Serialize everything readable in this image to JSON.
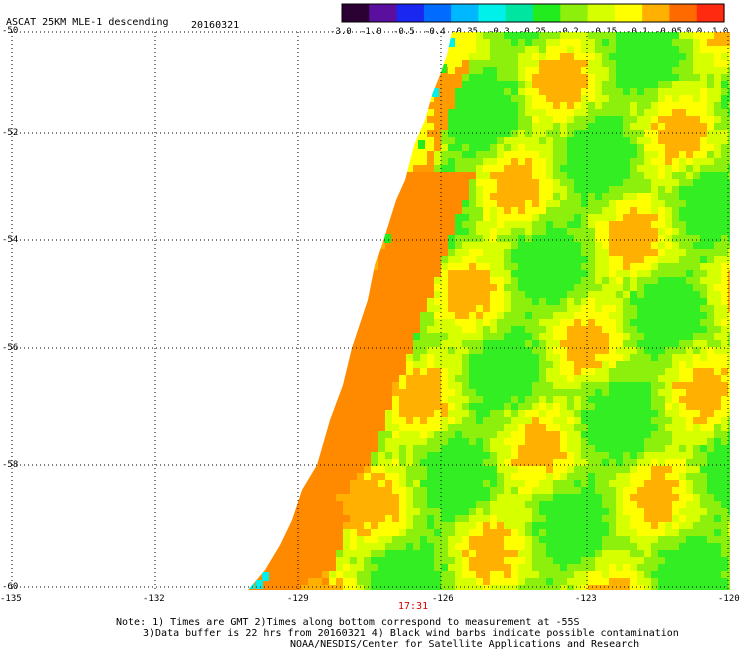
{
  "header": {
    "title": "ASCAT 25KM MLE-1 descending",
    "date": "20160321"
  },
  "colorbar": {
    "labels": [
      "-3.0",
      "-1.0",
      "-0.5",
      "-0.4",
      "-0.35",
      "-0.3",
      "-0.25",
      "-0.2",
      "-0.15",
      "-0.1",
      "-0.05",
      "0.0",
      "1.0"
    ],
    "colors": [
      "#2b0033",
      "#5a0f9e",
      "#1a27f0",
      "#006cff",
      "#00b8ff",
      "#00f0ea",
      "#00e6a0",
      "#22ec1e",
      "#8cf00c",
      "#d6ff00",
      "#ffff00",
      "#ffb000",
      "#ff6a00",
      "#ff2a10"
    ]
  },
  "axes": {
    "lat_labels": [
      "-50",
      "-52",
      "-54",
      "-56",
      "-58",
      "-60"
    ],
    "lon_labels": [
      "-135",
      "-132",
      "-129",
      "-126",
      "-123",
      "-120"
    ]
  },
  "time_label": "17:31",
  "notes": {
    "line1": "Note: 1) Times are GMT 2)Times along bottom correspond to measurement at -55S",
    "line2": "3)Data buffer is 22 hrs from 20160321 4) Black wind barbs indicate possible contamination",
    "line3": "NOAA/NESDIS/Center for Satellite Applications and Research"
  }
}
